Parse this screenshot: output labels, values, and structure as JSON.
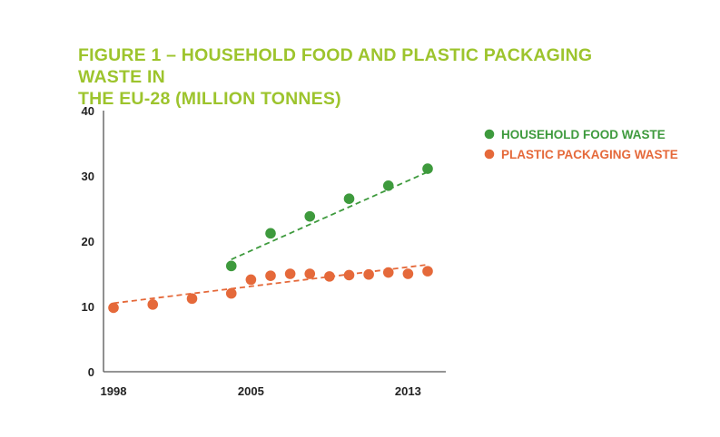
{
  "colors": {
    "title": "#9dc42d",
    "food": "#3e9a3d",
    "plastic": "#e5693a",
    "axis": "#555555"
  },
  "chart_data": {
    "type": "scatter",
    "title_lines": [
      "FIGURE 1 – HOUSEHOLD FOOD AND PLASTIC PACKAGING WASTE IN",
      "THE EU-28 (MILLION TONNES)"
    ],
    "xlabel": "",
    "ylabel": "",
    "xlim": [
      1998,
      2014.3
    ],
    "ylim": [
      0,
      40
    ],
    "x_ticks": [
      1998,
      2005,
      2013
    ],
    "y_ticks": [
      0,
      10,
      20,
      30,
      40
    ],
    "legend_position": "top-right",
    "series": [
      {
        "name": "HOUSEHOLD FOOD WASTE",
        "color_key": "food",
        "points": [
          [
            2004,
            16.2
          ],
          [
            2006,
            21.2
          ],
          [
            2008,
            23.8
          ],
          [
            2010,
            26.5
          ],
          [
            2012,
            28.5
          ],
          [
            2014,
            31.1
          ]
        ],
        "trend": [
          [
            2004,
            17.2
          ],
          [
            2014,
            30.6
          ]
        ]
      },
      {
        "name": "PLASTIC PACKAGING WASTE",
        "color_key": "plastic",
        "points": [
          [
            1998,
            9.8
          ],
          [
            2000,
            10.3
          ],
          [
            2002,
            11.2
          ],
          [
            2004,
            12.0
          ],
          [
            2005,
            14.1
          ],
          [
            2006,
            14.7
          ],
          [
            2007,
            15.0
          ],
          [
            2008,
            15.0
          ],
          [
            2009,
            14.6
          ],
          [
            2010,
            14.8
          ],
          [
            2011,
            14.9
          ],
          [
            2012,
            15.2
          ],
          [
            2013,
            15.0
          ],
          [
            2014,
            15.4
          ]
        ],
        "trend": [
          [
            1998,
            10.5
          ],
          [
            2014,
            16.4
          ]
        ]
      }
    ]
  }
}
